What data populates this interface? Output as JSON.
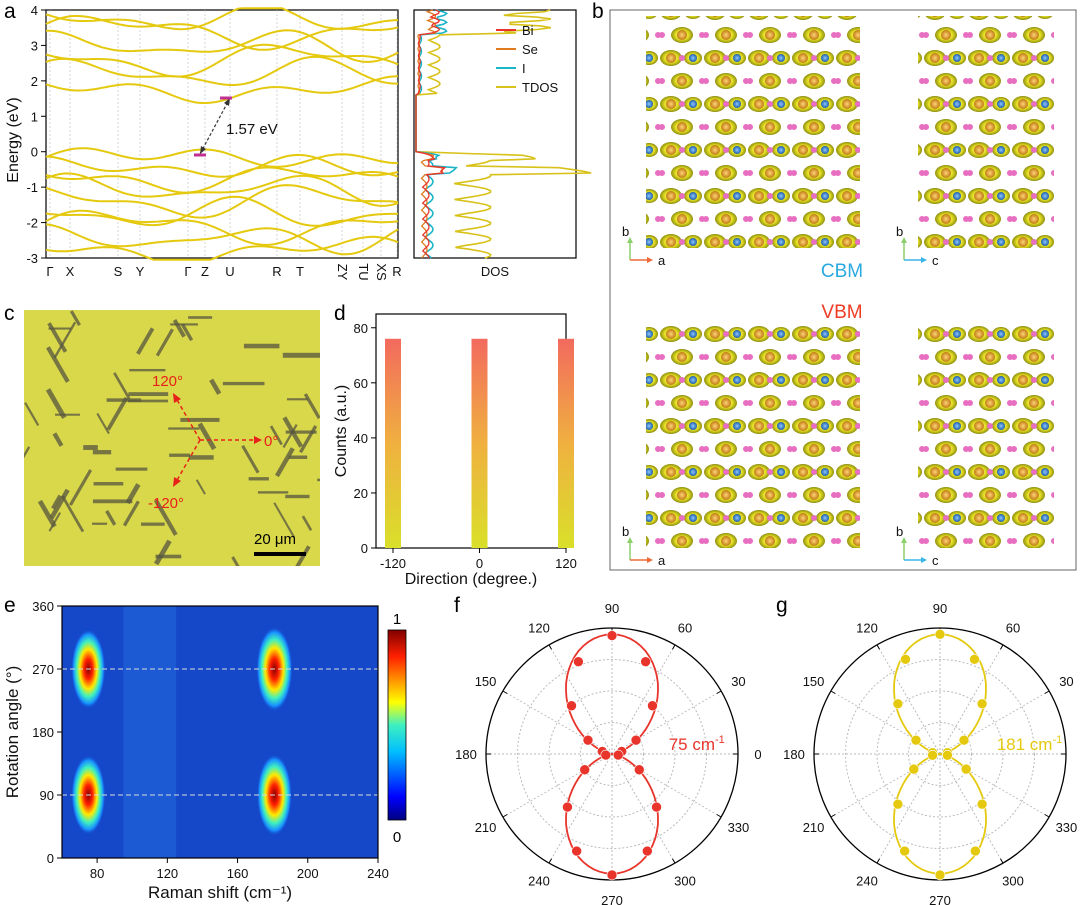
{
  "panel_labels": [
    "a",
    "b",
    "c",
    "d",
    "e",
    "f",
    "g"
  ],
  "colors": {
    "band": "#e5c90e",
    "bi": "#e8342a",
    "se": "#e07a1f",
    "i": "#1bb5c8",
    "tdos": "#d8c21a",
    "cbm": "#29a9e0",
    "vbm": "#ee3b24",
    "polar_f": "#e8342a",
    "polar_g": "#e5c90e",
    "image_bg": "#d9d84a"
  },
  "a": {
    "ylabel": "Energy (eV)",
    "yticks": [
      "-3",
      "-2",
      "-1",
      "0",
      "1",
      "2",
      "3",
      "4"
    ],
    "kpoints": [
      "Γ",
      "X",
      "S",
      "Y",
      "Γ",
      "Z",
      "U",
      "R",
      "T",
      "ZY",
      "TU",
      "XS",
      "R"
    ],
    "gap_label": "1.57 eV",
    "dos_xlabel": "DOS",
    "legend": [
      "Bi",
      "Se",
      "I",
      "TDOS"
    ]
  },
  "b": {
    "cbm": "CBM",
    "vbm": "VBM",
    "axes": [
      {
        "up": "b",
        "right": "a"
      },
      {
        "up": "b",
        "right": "c"
      },
      {
        "up": "b",
        "right": "a"
      },
      {
        "up": "b",
        "right": "c"
      }
    ]
  },
  "c": {
    "angles": [
      "120°",
      "0°",
      "-120°"
    ],
    "scalebar": "20 μm"
  },
  "chart_data": [
    {
      "panel": "d",
      "type": "bar",
      "categories": [
        "-120",
        "0",
        "120"
      ],
      "values": [
        76,
        76,
        76
      ],
      "xlabel": "Direction (degree.)",
      "ylabel": "Counts (a.u.)",
      "ylim": [
        0,
        85
      ],
      "yticks": [
        0,
        20,
        40,
        60,
        80
      ]
    },
    {
      "panel": "e",
      "type": "heatmap",
      "xlabel": "Raman shift (cm⁻¹)",
      "ylabel": "Rotation angle (°)",
      "xlim": [
        60,
        240
      ],
      "ylim": [
        0,
        360
      ],
      "xticks": [
        80,
        120,
        160,
        200,
        240
      ],
      "yticks": [
        0,
        90,
        180,
        270,
        360
      ],
      "colorbar": {
        "min": 0,
        "max": 1
      },
      "peaks": [
        {
          "x": 75,
          "y": 90,
          "v": 0.75
        },
        {
          "x": 75,
          "y": 270,
          "v": 0.75
        },
        {
          "x": 181,
          "y": 90,
          "v": 0.85
        },
        {
          "x": 181,
          "y": 270,
          "v": 1.0
        }
      ],
      "guides": [
        90,
        270
      ]
    },
    {
      "panel": "f",
      "type": "scatter",
      "label": "75 cm",
      "label_sup": "-1",
      "angle_ticks": [
        90,
        60,
        30,
        0,
        330,
        300,
        270,
        240,
        210,
        180,
        150,
        120
      ],
      "points": [
        {
          "theta": 90,
          "r": 0.94
        },
        {
          "theta": 110,
          "r": 0.78
        },
        {
          "theta": 70,
          "r": 0.78
        },
        {
          "theta": 130,
          "r": 0.5
        },
        {
          "theta": 50,
          "r": 0.5
        },
        {
          "theta": 150,
          "r": 0.22
        },
        {
          "theta": 30,
          "r": 0.22
        },
        {
          "theta": 165,
          "r": 0.08
        },
        {
          "theta": 15,
          "r": 0.08
        },
        {
          "theta": 190,
          "r": 0.05
        },
        {
          "theta": 350,
          "r": 0.05
        },
        {
          "theta": 210,
          "r": 0.25
        },
        {
          "theta": 330,
          "r": 0.25
        },
        {
          "theta": 230,
          "r": 0.55
        },
        {
          "theta": 310,
          "r": 0.55
        },
        {
          "theta": 250,
          "r": 0.82
        },
        {
          "theta": 290,
          "r": 0.82
        },
        {
          "theta": 270,
          "r": 0.96
        }
      ]
    },
    {
      "panel": "g",
      "type": "scatter",
      "label": "181 cm",
      "label_sup": "-1",
      "angle_ticks": [
        90,
        60,
        30,
        0,
        330,
        300,
        270,
        240,
        210,
        180,
        150,
        120
      ],
      "points": [
        {
          "theta": 90,
          "r": 0.95
        },
        {
          "theta": 110,
          "r": 0.8
        },
        {
          "theta": 70,
          "r": 0.8
        },
        {
          "theta": 130,
          "r": 0.52
        },
        {
          "theta": 50,
          "r": 0.52
        },
        {
          "theta": 150,
          "r": 0.22
        },
        {
          "theta": 30,
          "r": 0.22
        },
        {
          "theta": 170,
          "r": 0.06
        },
        {
          "theta": 10,
          "r": 0.06
        },
        {
          "theta": 190,
          "r": 0.06
        },
        {
          "theta": 350,
          "r": 0.06
        },
        {
          "theta": 210,
          "r": 0.24
        },
        {
          "theta": 330,
          "r": 0.24
        },
        {
          "theta": 230,
          "r": 0.52
        },
        {
          "theta": 310,
          "r": 0.52
        },
        {
          "theta": 250,
          "r": 0.82
        },
        {
          "theta": 290,
          "r": 0.82
        },
        {
          "theta": 270,
          "r": 0.96
        }
      ]
    }
  ]
}
